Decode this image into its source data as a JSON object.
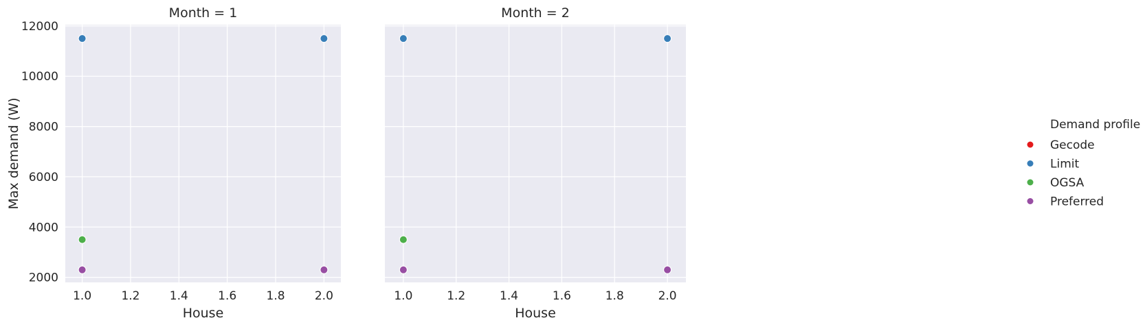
{
  "chart_data": {
    "type": "scatter",
    "ylabel": "Max demand (W)",
    "xlabel": "House",
    "xlim": [
      0.93,
      2.07
    ],
    "ylim": [
      1800,
      12050
    ],
    "x_ticks": [
      1.0,
      1.2,
      1.4,
      1.6,
      1.8,
      2.0
    ],
    "x_tick_labels": [
      "1.0",
      "1.2",
      "1.4",
      "1.6",
      "1.8",
      "2.0"
    ],
    "y_ticks": [
      2000,
      4000,
      6000,
      8000,
      10000,
      12000
    ],
    "y_tick_labels": [
      "2000",
      "4000",
      "6000",
      "8000",
      "10000",
      "12000"
    ],
    "grid": true,
    "legend": {
      "title": "Demand profile",
      "placement": "right",
      "entries": [
        {
          "name": "Gecode",
          "color": "#e41a1c"
        },
        {
          "name": "Limit",
          "color": "#377eb8"
        },
        {
          "name": "OGSA",
          "color": "#4daf4a"
        },
        {
          "name": "Preferred",
          "color": "#984ea3"
        }
      ]
    },
    "facets": [
      {
        "title": "Month = 1",
        "series": [
          {
            "name": "Gecode",
            "x": [
              1.0,
              2.0
            ],
            "y": [
              2300,
              2300
            ]
          },
          {
            "name": "Limit",
            "x": [
              1.0,
              2.0
            ],
            "y": [
              11500,
              11500
            ]
          },
          {
            "name": "OGSA",
            "x": [
              1.0
            ],
            "y": [
              3500
            ]
          },
          {
            "name": "Preferred",
            "x": [
              1.0,
              2.0
            ],
            "y": [
              2300,
              2300
            ]
          }
        ]
      },
      {
        "title": "Month = 2",
        "series": [
          {
            "name": "Gecode",
            "x": [
              1.0,
              2.0
            ],
            "y": [
              2300,
              2300
            ]
          },
          {
            "name": "Limit",
            "x": [
              1.0,
              2.0
            ],
            "y": [
              11500,
              11500
            ]
          },
          {
            "name": "OGSA",
            "x": [
              1.0
            ],
            "y": [
              3500
            ]
          },
          {
            "name": "Preferred",
            "x": [
              1.0,
              2.0
            ],
            "y": [
              2300,
              2300
            ]
          }
        ]
      }
    ]
  }
}
